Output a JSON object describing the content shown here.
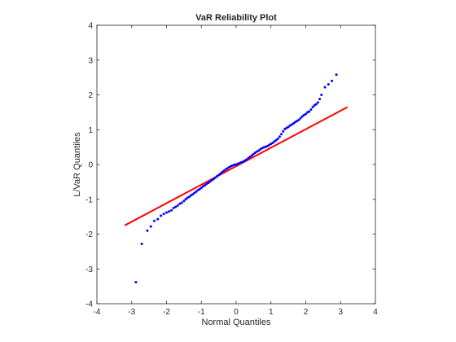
{
  "chart_data": {
    "type": "scatter",
    "title": "VaR Reliability Plot",
    "xlabel": "Normal Quantiles",
    "ylabel": "L/VaR Quantiles",
    "xlim": [
      -4,
      4
    ],
    "ylim": [
      -4,
      4
    ],
    "xticks": [
      "-4",
      "-3",
      "-2",
      "-1",
      "0",
      "1",
      "2",
      "3",
      "4"
    ],
    "yticks": [
      "-4",
      "-3",
      "-2",
      "-1",
      "0",
      "1",
      "2",
      "3",
      "4"
    ],
    "grid": false,
    "box": true,
    "colors": {
      "points": "#0000ff",
      "reference_line": "#ff0000",
      "axes": "#262626"
    },
    "reference_line": {
      "x": [
        -3.2,
        3.2
      ],
      "y": [
        -1.75,
        1.65
      ]
    },
    "series": [
      {
        "marker": "dot",
        "x": [
          -2.88,
          -2.71,
          -2.55,
          -2.45,
          -2.35,
          -2.25,
          -2.16,
          -2.08,
          -2.0,
          -1.93,
          -1.86,
          -1.8,
          -1.74,
          -1.68,
          -1.62,
          -1.56,
          -1.5,
          -1.45,
          -1.4,
          -1.35,
          -1.3,
          -1.25,
          -1.2,
          -1.15,
          -1.1,
          -1.05,
          -1.0,
          -0.95,
          -0.9,
          -0.85,
          -0.8,
          -0.75,
          -0.7,
          -0.65,
          -0.6,
          -0.55,
          -0.5,
          -0.45,
          -0.4,
          -0.35,
          -0.3,
          -0.25,
          -0.2,
          -0.15,
          -0.1,
          -0.05,
          0.0,
          0.05,
          0.1,
          0.15,
          0.2,
          0.25,
          0.3,
          0.35,
          0.4,
          0.45,
          0.5,
          0.55,
          0.6,
          0.65,
          0.7,
          0.75,
          0.8,
          0.85,
          0.9,
          0.95,
          1.0,
          1.05,
          1.1,
          1.15,
          1.2,
          1.25,
          1.3,
          1.35,
          1.4,
          1.45,
          1.5,
          1.55,
          1.6,
          1.65,
          1.7,
          1.75,
          1.8,
          1.85,
          1.9,
          1.95,
          2.0,
          2.05,
          2.1,
          2.15,
          2.2,
          2.25,
          2.3,
          2.35,
          2.4,
          2.45,
          2.55,
          2.65,
          2.75,
          2.88
        ],
        "y": [
          -3.38,
          -2.28,
          -1.9,
          -1.78,
          -1.62,
          -1.57,
          -1.47,
          -1.42,
          -1.38,
          -1.35,
          -1.32,
          -1.25,
          -1.22,
          -1.18,
          -1.13,
          -1.1,
          -1.05,
          -1.0,
          -0.96,
          -0.93,
          -0.89,
          -0.86,
          -0.82,
          -0.78,
          -0.74,
          -0.71,
          -0.67,
          -0.63,
          -0.6,
          -0.56,
          -0.53,
          -0.49,
          -0.45,
          -0.42,
          -0.38,
          -0.34,
          -0.3,
          -0.26,
          -0.22,
          -0.18,
          -0.14,
          -0.11,
          -0.08,
          -0.05,
          -0.03,
          -0.01,
          0.0,
          0.02,
          0.04,
          0.06,
          0.08,
          0.11,
          0.14,
          0.18,
          0.22,
          0.26,
          0.3,
          0.34,
          0.37,
          0.4,
          0.44,
          0.47,
          0.49,
          0.51,
          0.53,
          0.56,
          0.59,
          0.62,
          0.66,
          0.7,
          0.74,
          0.8,
          0.87,
          0.95,
          1.02,
          1.05,
          1.08,
          1.12,
          1.15,
          1.18,
          1.22,
          1.25,
          1.28,
          1.33,
          1.38,
          1.42,
          1.45,
          1.5,
          1.52,
          1.58,
          1.65,
          1.7,
          1.73,
          1.78,
          1.88,
          2.0,
          2.22,
          2.3,
          2.4,
          2.58
        ]
      }
    ]
  }
}
